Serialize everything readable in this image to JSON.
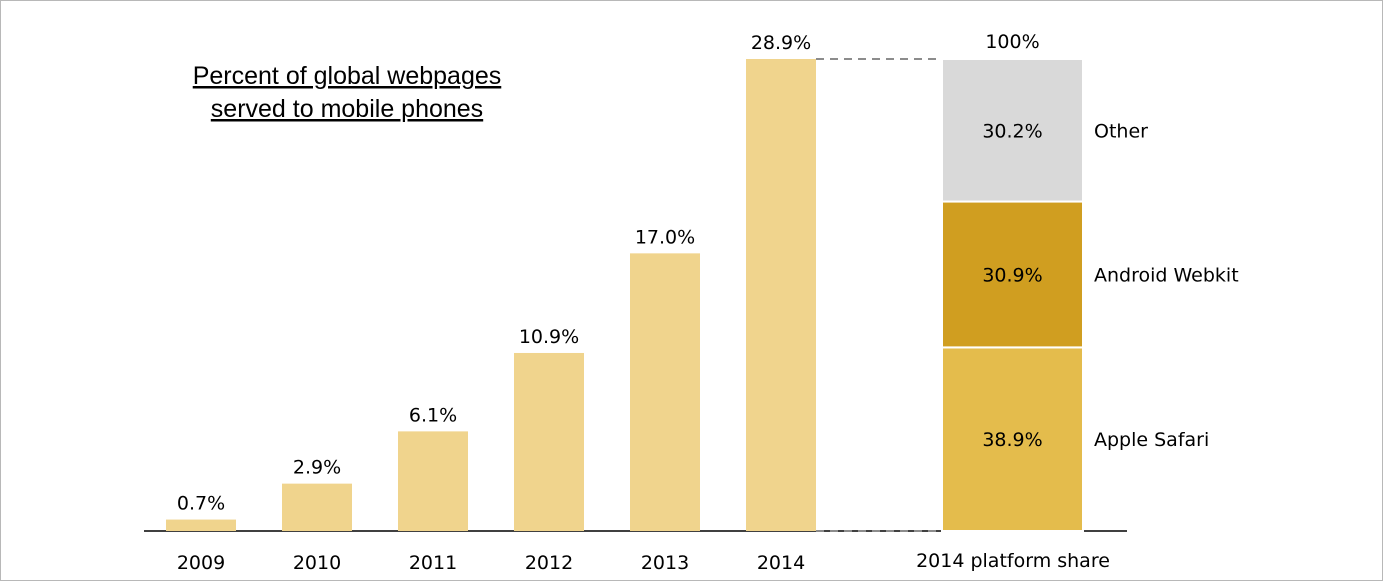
{
  "chart_data": [
    {
      "type": "bar",
      "title_lines": [
        "Percent of global webpages",
        "served to mobile phones"
      ],
      "categories": [
        "2009",
        "2010",
        "2011",
        "2012",
        "2013",
        "2014"
      ],
      "values": [
        0.7,
        2.9,
        6.1,
        10.9,
        17.0,
        28.9
      ],
      "value_labels": [
        "0.7%",
        "2.9%",
        "6.1%",
        "10.9%",
        "17.0%",
        "28.9%"
      ],
      "bar_color": "#f0d48d",
      "ylim": [
        0,
        28.9
      ]
    },
    {
      "type": "bar",
      "stacked": true,
      "category": "2014 platform share",
      "total_label": "100%",
      "segments": [
        {
          "name": "Apple Safari",
          "value": 38.9,
          "label": "38.9%",
          "color": "#e4bc4c"
        },
        {
          "name": "Android Webkit",
          "value": 30.9,
          "label": "30.9%",
          "color": "#d09e20"
        },
        {
          "name": "Other",
          "value": 30.2,
          "label": "30.2%",
          "color": "#d9d9d9"
        }
      ],
      "ylim": [
        0,
        100
      ]
    }
  ],
  "colors": {
    "axis": "#000000",
    "connector": "#8c8c8c",
    "text": "#000000"
  }
}
